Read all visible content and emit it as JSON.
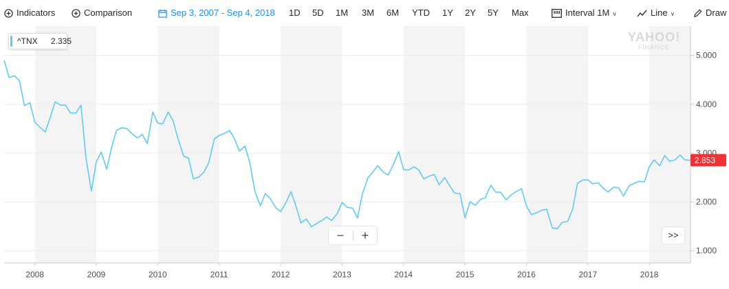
{
  "toolbar": {
    "indicators_label": "Indicators",
    "comparison_label": "Comparison",
    "date_range": "Sep 3, 2007 - Sep 4, 2018",
    "ranges": [
      "1D",
      "5D",
      "1M",
      "3M",
      "6M",
      "YTD",
      "1Y",
      "2Y",
      "5Y",
      "Max"
    ],
    "interval_label": "Interval",
    "interval_value": "1M",
    "chart_type_label": "Line",
    "draw_label": "Draw"
  },
  "tooltip": {
    "symbol": "^TNX",
    "value": "2.335"
  },
  "watermark": {
    "line1": "YAHOO!",
    "line2": "FINANCE"
  },
  "zoom": {
    "minus": "−",
    "plus": "+"
  },
  "next_label": ">>",
  "colors": {
    "line": "#5ecbf5",
    "accent": "#188fff",
    "price_tag": "#ee3338",
    "band": "#f4f4f4"
  },
  "chart_data": {
    "type": "line",
    "title": "",
    "xlabel": "",
    "ylabel": "",
    "x_range": [
      2007.5,
      2018.67
    ],
    "ylim": [
      0.75,
      5.6
    ],
    "x_ticks": [
      "2008",
      "2009",
      "2010",
      "2011",
      "2012",
      "2013",
      "2014",
      "2015",
      "2016",
      "2017",
      "2018"
    ],
    "y_ticks": [
      "1.000",
      "2.000",
      "3.000",
      "4.000",
      "5.000"
    ],
    "last_price": "2.853",
    "legend": "none",
    "grid": "horizontal",
    "series": [
      {
        "x": [
          2007.5,
          2007.58,
          2007.67,
          2007.75,
          2007.83,
          2007.92,
          2008.0,
          2008.08,
          2008.17,
          2008.25,
          2008.33,
          2008.42,
          2008.5,
          2008.58,
          2008.67,
          2008.75,
          2008.83,
          2008.92,
          2009.0,
          2009.08,
          2009.17,
          2009.25,
          2009.33,
          2009.42,
          2009.5,
          2009.58,
          2009.67,
          2009.75,
          2009.83,
          2009.92,
          2010.0,
          2010.08,
          2010.17,
          2010.25,
          2010.33,
          2010.42,
          2010.5,
          2010.58,
          2010.67,
          2010.75,
          2010.83,
          2010.92,
          2011.0,
          2011.08,
          2011.17,
          2011.25,
          2011.33,
          2011.42,
          2011.5,
          2011.58,
          2011.67,
          2011.75,
          2011.83,
          2011.92,
          2012.0,
          2012.08,
          2012.17,
          2012.25,
          2012.33,
          2012.42,
          2012.5,
          2012.58,
          2012.67,
          2012.75,
          2012.83,
          2012.92,
          2013.0,
          2013.08,
          2013.17,
          2013.25,
          2013.33,
          2013.42,
          2013.5,
          2013.58,
          2013.67,
          2013.75,
          2013.83,
          2013.92,
          2014.0,
          2014.08,
          2014.17,
          2014.25,
          2014.33,
          2014.42,
          2014.5,
          2014.58,
          2014.67,
          2014.75,
          2014.83,
          2014.92,
          2015.0,
          2015.08,
          2015.17,
          2015.25,
          2015.33,
          2015.42,
          2015.5,
          2015.58,
          2015.67,
          2015.75,
          2015.83,
          2015.92,
          2016.0,
          2016.08,
          2016.17,
          2016.25,
          2016.33,
          2016.42,
          2016.5,
          2016.58,
          2016.67,
          2016.75,
          2016.83,
          2016.92,
          2017.0,
          2017.08,
          2017.17,
          2017.25,
          2017.33,
          2017.42,
          2017.5,
          2017.58,
          2017.67,
          2017.75,
          2017.83,
          2017.92,
          2018.0,
          2018.08,
          2018.17,
          2018.25,
          2018.33,
          2018.42,
          2018.5,
          2018.58,
          2018.67
        ],
        "values": [
          4.9,
          4.55,
          4.58,
          4.48,
          3.97,
          4.03,
          3.63,
          3.53,
          3.43,
          3.73,
          4.05,
          3.98,
          3.98,
          3.82,
          3.82,
          3.98,
          2.92,
          2.22,
          2.82,
          3.02,
          2.67,
          3.12,
          3.47,
          3.52,
          3.5,
          3.4,
          3.31,
          3.38,
          3.19,
          3.84,
          3.61,
          3.6,
          3.84,
          3.66,
          3.29,
          2.94,
          2.9,
          2.47,
          2.51,
          2.61,
          2.8,
          3.29,
          3.36,
          3.4,
          3.46,
          3.29,
          3.04,
          3.14,
          2.79,
          2.22,
          1.92,
          2.17,
          2.07,
          1.88,
          1.8,
          1.97,
          2.21,
          1.91,
          1.57,
          1.65,
          1.49,
          1.55,
          1.62,
          1.69,
          1.62,
          1.76,
          1.99,
          1.89,
          1.87,
          1.67,
          2.16,
          2.49,
          2.61,
          2.74,
          2.61,
          2.55,
          2.75,
          3.03,
          2.66,
          2.65,
          2.72,
          2.65,
          2.47,
          2.53,
          2.56,
          2.35,
          2.5,
          2.33,
          2.18,
          2.17,
          1.67,
          2.0,
          1.93,
          2.05,
          2.09,
          2.34,
          2.2,
          2.2,
          2.04,
          2.14,
          2.21,
          2.27,
          1.92,
          1.74,
          1.78,
          1.83,
          1.85,
          1.47,
          1.45,
          1.58,
          1.6,
          1.84,
          2.38,
          2.45,
          2.45,
          2.37,
          2.39,
          2.28,
          2.2,
          2.3,
          2.29,
          2.12,
          2.33,
          2.38,
          2.42,
          2.41,
          2.72,
          2.86,
          2.74,
          2.95,
          2.83,
          2.86,
          2.96,
          2.86,
          2.85
        ]
      }
    ]
  }
}
